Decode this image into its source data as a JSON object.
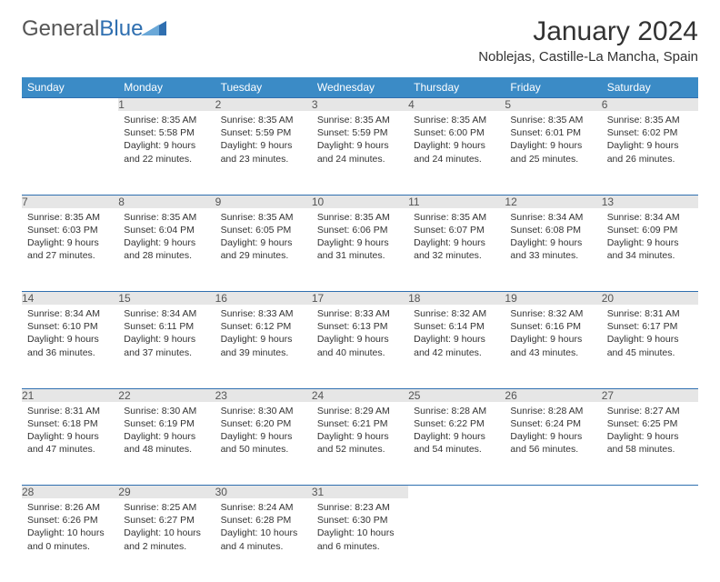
{
  "logo": {
    "word1": "General",
    "word2": "Blue"
  },
  "title": "January 2024",
  "location": "Noblejas, Castille-La Mancha, Spain",
  "colors": {
    "header_bg": "#3b8bc6",
    "border": "#2f6fb0",
    "daynum_bg": "#e6e6e6",
    "text": "#333333",
    "logo_gray": "#555555",
    "logo_blue": "#2f6fb0"
  },
  "weekdays": [
    "Sunday",
    "Monday",
    "Tuesday",
    "Wednesday",
    "Thursday",
    "Friday",
    "Saturday"
  ],
  "weeks": [
    [
      null,
      {
        "n": "1",
        "sr": "8:35 AM",
        "ss": "5:58 PM",
        "dl": "9 hours and 22 minutes."
      },
      {
        "n": "2",
        "sr": "8:35 AM",
        "ss": "5:59 PM",
        "dl": "9 hours and 23 minutes."
      },
      {
        "n": "3",
        "sr": "8:35 AM",
        "ss": "5:59 PM",
        "dl": "9 hours and 24 minutes."
      },
      {
        "n": "4",
        "sr": "8:35 AM",
        "ss": "6:00 PM",
        "dl": "9 hours and 24 minutes."
      },
      {
        "n": "5",
        "sr": "8:35 AM",
        "ss": "6:01 PM",
        "dl": "9 hours and 25 minutes."
      },
      {
        "n": "6",
        "sr": "8:35 AM",
        "ss": "6:02 PM",
        "dl": "9 hours and 26 minutes."
      }
    ],
    [
      {
        "n": "7",
        "sr": "8:35 AM",
        "ss": "6:03 PM",
        "dl": "9 hours and 27 minutes."
      },
      {
        "n": "8",
        "sr": "8:35 AM",
        "ss": "6:04 PM",
        "dl": "9 hours and 28 minutes."
      },
      {
        "n": "9",
        "sr": "8:35 AM",
        "ss": "6:05 PM",
        "dl": "9 hours and 29 minutes."
      },
      {
        "n": "10",
        "sr": "8:35 AM",
        "ss": "6:06 PM",
        "dl": "9 hours and 31 minutes."
      },
      {
        "n": "11",
        "sr": "8:35 AM",
        "ss": "6:07 PM",
        "dl": "9 hours and 32 minutes."
      },
      {
        "n": "12",
        "sr": "8:34 AM",
        "ss": "6:08 PM",
        "dl": "9 hours and 33 minutes."
      },
      {
        "n": "13",
        "sr": "8:34 AM",
        "ss": "6:09 PM",
        "dl": "9 hours and 34 minutes."
      }
    ],
    [
      {
        "n": "14",
        "sr": "8:34 AM",
        "ss": "6:10 PM",
        "dl": "9 hours and 36 minutes."
      },
      {
        "n": "15",
        "sr": "8:34 AM",
        "ss": "6:11 PM",
        "dl": "9 hours and 37 minutes."
      },
      {
        "n": "16",
        "sr": "8:33 AM",
        "ss": "6:12 PM",
        "dl": "9 hours and 39 minutes."
      },
      {
        "n": "17",
        "sr": "8:33 AM",
        "ss": "6:13 PM",
        "dl": "9 hours and 40 minutes."
      },
      {
        "n": "18",
        "sr": "8:32 AM",
        "ss": "6:14 PM",
        "dl": "9 hours and 42 minutes."
      },
      {
        "n": "19",
        "sr": "8:32 AM",
        "ss": "6:16 PM",
        "dl": "9 hours and 43 minutes."
      },
      {
        "n": "20",
        "sr": "8:31 AM",
        "ss": "6:17 PM",
        "dl": "9 hours and 45 minutes."
      }
    ],
    [
      {
        "n": "21",
        "sr": "8:31 AM",
        "ss": "6:18 PM",
        "dl": "9 hours and 47 minutes."
      },
      {
        "n": "22",
        "sr": "8:30 AM",
        "ss": "6:19 PM",
        "dl": "9 hours and 48 minutes."
      },
      {
        "n": "23",
        "sr": "8:30 AM",
        "ss": "6:20 PM",
        "dl": "9 hours and 50 minutes."
      },
      {
        "n": "24",
        "sr": "8:29 AM",
        "ss": "6:21 PM",
        "dl": "9 hours and 52 minutes."
      },
      {
        "n": "25",
        "sr": "8:28 AM",
        "ss": "6:22 PM",
        "dl": "9 hours and 54 minutes."
      },
      {
        "n": "26",
        "sr": "8:28 AM",
        "ss": "6:24 PM",
        "dl": "9 hours and 56 minutes."
      },
      {
        "n": "27",
        "sr": "8:27 AM",
        "ss": "6:25 PM",
        "dl": "9 hours and 58 minutes."
      }
    ],
    [
      {
        "n": "28",
        "sr": "8:26 AM",
        "ss": "6:26 PM",
        "dl": "10 hours and 0 minutes."
      },
      {
        "n": "29",
        "sr": "8:25 AM",
        "ss": "6:27 PM",
        "dl": "10 hours and 2 minutes."
      },
      {
        "n": "30",
        "sr": "8:24 AM",
        "ss": "6:28 PM",
        "dl": "10 hours and 4 minutes."
      },
      {
        "n": "31",
        "sr": "8:23 AM",
        "ss": "6:30 PM",
        "dl": "10 hours and 6 minutes."
      },
      null,
      null,
      null
    ]
  ],
  "labels": {
    "sunrise": "Sunrise:",
    "sunset": "Sunset:",
    "daylight": "Daylight:"
  }
}
